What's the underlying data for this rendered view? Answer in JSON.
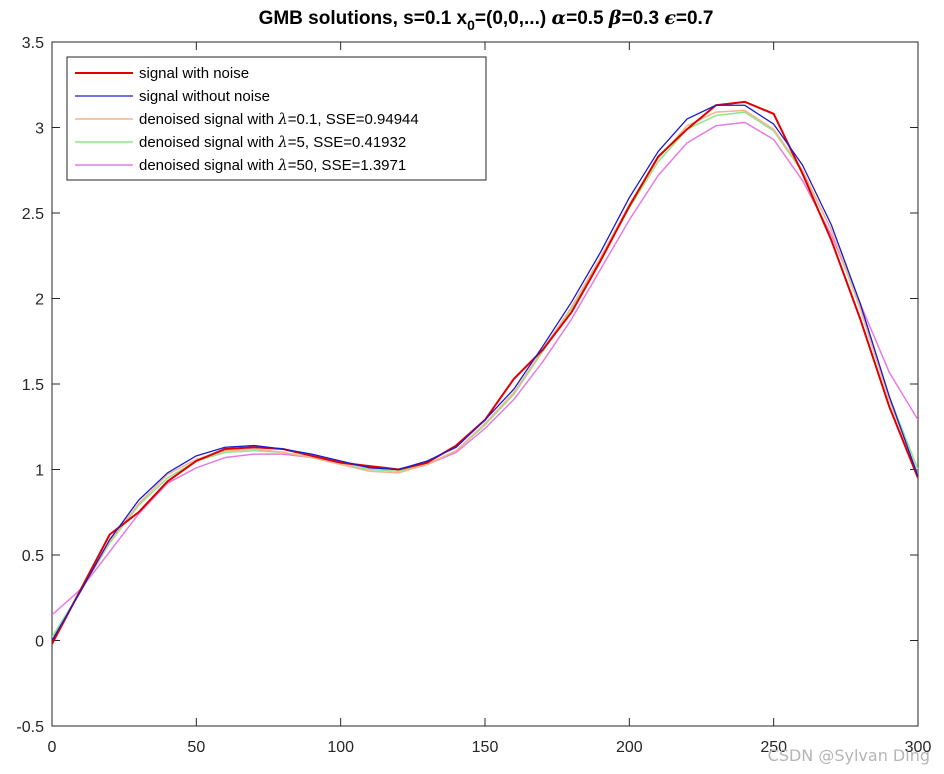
{
  "chart_data": {
    "type": "line",
    "title": "GMB solutions, s=0.1 x₀=(0,0,...) α=0.5 β=0.3 ε=0.7",
    "title_parts": {
      "a": "GMB solutions, s=0.1 x",
      "sub": "0",
      "b": "=(0,0,...) ",
      "alpha": "α",
      "c": "=0.5 ",
      "beta": "β",
      "d": "=0.3 ",
      "eps": "ϵ",
      "e": "=0.7"
    },
    "xlabel": "",
    "ylabel": "",
    "xlim": [
      0,
      300
    ],
    "ylim": [
      -0.5,
      3.5
    ],
    "xticks": [
      "0",
      "50",
      "100",
      "150",
      "200",
      "250",
      "300"
    ],
    "yticks": [
      "-0.5",
      "0",
      "0.5",
      "1",
      "1.5",
      "2",
      "2.5",
      "3",
      "3.5"
    ],
    "grid": false,
    "legend_position": "top-left",
    "x": [
      0,
      10,
      20,
      30,
      40,
      50,
      60,
      70,
      80,
      90,
      100,
      110,
      120,
      130,
      140,
      150,
      160,
      170,
      180,
      190,
      200,
      210,
      220,
      230,
      240,
      250,
      260,
      270,
      280,
      290,
      300
    ],
    "series": [
      {
        "name": "signal with noise",
        "color": "#e00000",
        "values": [
          -0.02,
          0.3,
          0.62,
          0.75,
          0.93,
          1.05,
          1.12,
          1.13,
          1.12,
          1.08,
          1.04,
          1.02,
          1.0,
          1.04,
          1.14,
          1.29,
          1.53,
          1.7,
          1.92,
          2.22,
          2.54,
          2.83,
          2.99,
          3.13,
          3.15,
          3.08,
          2.73,
          2.34,
          1.88,
          1.37,
          0.95
        ]
      },
      {
        "name": "signal without noise",
        "color": "#1a1ad6",
        "values": [
          0.0,
          0.29,
          0.59,
          0.82,
          0.98,
          1.08,
          1.13,
          1.14,
          1.12,
          1.09,
          1.05,
          1.01,
          1.0,
          1.05,
          1.13,
          1.29,
          1.47,
          1.72,
          1.98,
          2.27,
          2.59,
          2.86,
          3.05,
          3.13,
          3.13,
          3.02,
          2.78,
          2.43,
          1.97,
          1.43,
          0.96
        ]
      },
      {
        "name": "denoised signal with λ=0.1, SSE=0.94944",
        "color": "#f5b48a",
        "values": [
          0.0,
          0.29,
          0.58,
          0.8,
          0.97,
          1.06,
          1.11,
          1.12,
          1.1,
          1.07,
          1.03,
          0.99,
          0.98,
          1.03,
          1.11,
          1.27,
          1.45,
          1.7,
          1.95,
          2.24,
          2.55,
          2.82,
          3.01,
          3.09,
          3.1,
          2.99,
          2.75,
          2.4,
          1.94,
          1.41,
          0.97
        ]
      },
      {
        "name": "denoised signal with λ=5, SSE=0.41932",
        "color": "#8fe68a",
        "values": [
          0.02,
          0.29,
          0.57,
          0.79,
          0.95,
          1.05,
          1.1,
          1.11,
          1.1,
          1.07,
          1.03,
          1.0,
          0.99,
          1.03,
          1.11,
          1.26,
          1.44,
          1.69,
          1.94,
          2.23,
          2.53,
          2.8,
          2.99,
          3.07,
          3.09,
          2.98,
          2.74,
          2.4,
          1.95,
          1.43,
          1.0
        ]
      },
      {
        "name": "denoised signal with λ=50, SSE=1.3971",
        "color": "#e57be5",
        "values": [
          0.15,
          0.3,
          0.52,
          0.74,
          0.92,
          1.01,
          1.07,
          1.09,
          1.09,
          1.07,
          1.04,
          1.01,
          1.0,
          1.03,
          1.1,
          1.24,
          1.41,
          1.63,
          1.88,
          2.17,
          2.46,
          2.72,
          2.91,
          3.01,
          3.03,
          2.93,
          2.69,
          2.37,
          1.97,
          1.57,
          1.29
        ]
      }
    ]
  },
  "legend": {
    "items": [
      {
        "prefix": "signal with noise",
        "lambda": "",
        "suffix": ""
      },
      {
        "prefix": "signal without noise",
        "lambda": "",
        "suffix": ""
      },
      {
        "prefix": "denoised signal with ",
        "lambda": "λ",
        "suffix": "=0.1, SSE=0.94944"
      },
      {
        "prefix": "denoised signal with ",
        "lambda": "λ",
        "suffix": "=5, SSE=0.41932"
      },
      {
        "prefix": "denoised signal with ",
        "lambda": "λ",
        "suffix": "=50, SSE=1.3971"
      }
    ]
  },
  "watermark": "CSDN @Sylvan Ding"
}
